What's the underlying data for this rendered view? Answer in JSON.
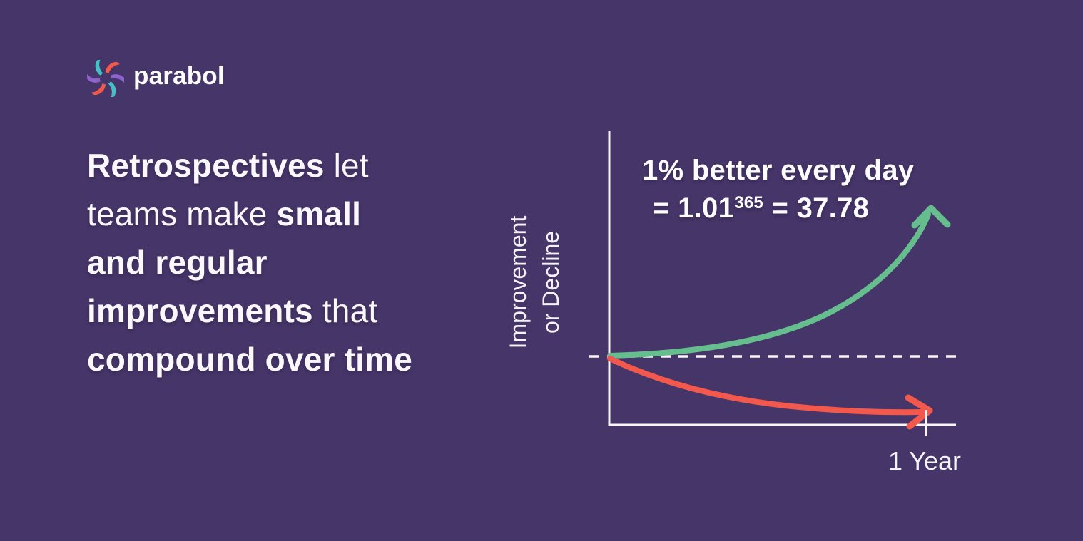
{
  "page": {
    "background": "#463568"
  },
  "brand": {
    "name": "parabol",
    "logo_colors": {
      "coral": "#F2584C",
      "purple": "#8E62CE",
      "teal": "#45C0C6"
    }
  },
  "headline": {
    "lines": [
      [
        {
          "text": "Retrospectives",
          "bold": true
        },
        {
          "text": " let",
          "bold": false
        }
      ],
      [
        {
          "text": "teams make ",
          "bold": false
        },
        {
          "text": "small",
          "bold": true
        }
      ],
      [
        {
          "text": "and regular",
          "bold": true
        }
      ],
      [
        {
          "text": "improvements",
          "bold": true
        },
        {
          "text": " that",
          "bold": false
        }
      ],
      [
        {
          "text": "compound over time",
          "bold": true
        }
      ]
    ]
  },
  "chart": {
    "ylabel_line1": "Improvement",
    "ylabel_line2": "or Decline",
    "xlabel": "1 Year",
    "annotation": {
      "line1": "1% better every day",
      "line2_prefix": "= 1.01",
      "line2_superscript": "365",
      "line2_suffix": " = 37.78"
    },
    "colors": {
      "growth": "#66BE8E",
      "decline": "#F2584C",
      "axis": "#F7F5FA"
    }
  },
  "chart_data": {
    "type": "line",
    "title": "",
    "xlabel": "1 Year",
    "ylabel": "Improvement or Decline",
    "x_domain": [
      "0",
      "1 Year (365 days)"
    ],
    "baseline": "dashed line = starting level (1.0, no change)",
    "grid": false,
    "legend": false,
    "annotation": "1% better every day = 1.01^365 = 37.78",
    "series": [
      {
        "name": "1% better every day",
        "color": "#66BE8E",
        "shape": "exponential growth starting at baseline, accelerating upward, ends in upward arrow",
        "endpoint_label": "1.01^365 = 37.78"
      },
      {
        "name": "decline",
        "color": "#F2584C",
        "shape": "exponential decay starting at baseline, flattening below it, ends in rightward arrow at 1 Year tick",
        "endpoint_label": ""
      }
    ]
  }
}
